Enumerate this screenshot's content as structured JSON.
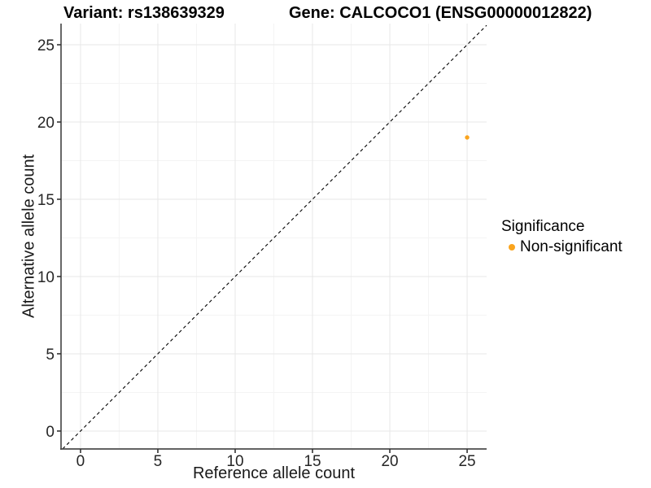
{
  "header": {
    "variant_title": "Variant: rs138639329",
    "gene_title": "Gene: CALCOCO1 (ENSG00000012822)"
  },
  "chart_data": {
    "type": "scatter",
    "xlabel": "Reference allele count",
    "ylabel": "Alternative allele count",
    "x_ticks": [
      0,
      5,
      10,
      15,
      20,
      25
    ],
    "y_ticks": [
      0,
      5,
      10,
      15,
      20,
      25
    ],
    "xlim": [
      -1.26,
      26.26
    ],
    "ylim": [
      -1.16,
      26.37
    ],
    "grid": {
      "major": true,
      "minor": true
    },
    "identity_line": {
      "style": "dashed",
      "slope": 1,
      "intercept": 0,
      "color": "#000000"
    },
    "points": [
      {
        "x": 25,
        "y": 19,
        "series": "Non-significant"
      }
    ],
    "series": [
      {
        "name": "Non-significant",
        "color": "#FAA41E"
      }
    ],
    "legend": {
      "title": "Significance",
      "position": "right",
      "items": [
        {
          "label": "Non-significant",
          "color": "#FAA41E"
        }
      ]
    }
  }
}
